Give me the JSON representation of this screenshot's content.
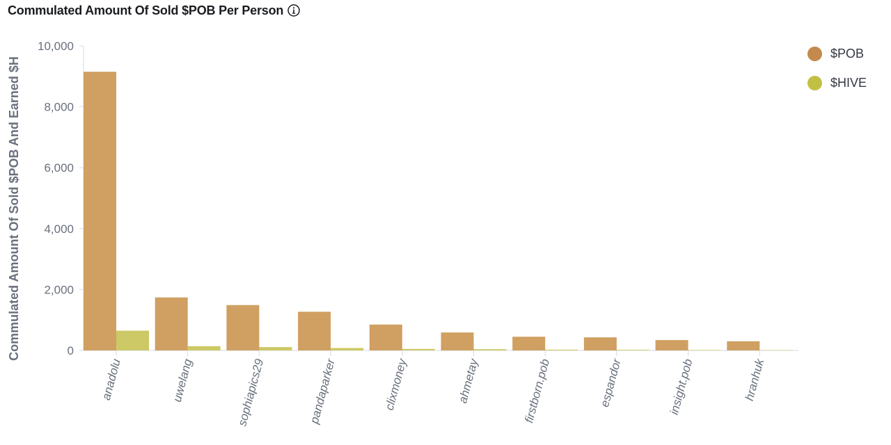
{
  "title": "Commulated Amount Of Sold $POB Per Person",
  "info_icon": "info-circle-icon",
  "chart_data": {
    "type": "bar",
    "title": "Commulated Amount Of Sold $POB Per Person",
    "ylabel": "Commulated Amount Of Sold $POB And Earned $H",
    "xlabel": "",
    "ylim": [
      0,
      10000
    ],
    "yticks": [
      0,
      2000,
      4000,
      6000,
      8000,
      10000
    ],
    "ytick_labels": [
      "0",
      "2,000",
      "4,000",
      "6,000",
      "8,000",
      "10,000"
    ],
    "categories": [
      "anadolu",
      "uwelang",
      "sophiapics29",
      "pandaparker",
      "clixmoney",
      "ahmetay",
      "firstborn.pob",
      "espandor",
      "insight.pob",
      "hranhuk"
    ],
    "series": [
      {
        "name": "$POB",
        "color": "#d09f62",
        "values": [
          9150,
          1740,
          1490,
          1270,
          850,
          590,
          450,
          430,
          340,
          300
        ]
      },
      {
        "name": "$HIVE",
        "color": "#ccc966",
        "values": [
          650,
          140,
          110,
          80,
          50,
          40,
          25,
          20,
          15,
          10
        ]
      }
    ],
    "legend_position": "top-right",
    "grid": false
  },
  "legend": [
    {
      "label": "$POB",
      "color": "#c4894c"
    },
    {
      "label": "$HIVE",
      "color": "#c2c044"
    }
  ]
}
